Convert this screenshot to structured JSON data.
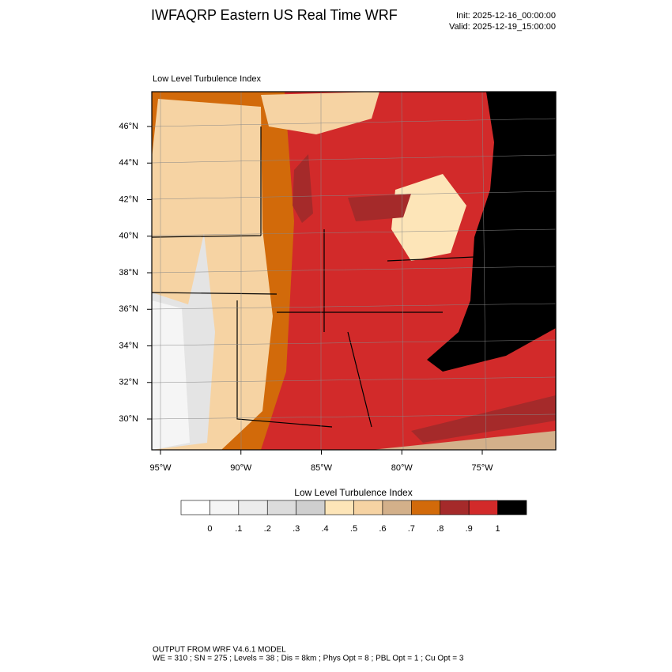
{
  "header": {
    "title": "IWFAQRP Eastern US Real Time WRF",
    "init": "Init: 2025-12-16_00:00:00",
    "valid": "Valid: 2025-12-19_15:00:00"
  },
  "map": {
    "title": "Low Level Turbulence Index",
    "lat_labels": [
      "46°N",
      "44°N",
      "42°N",
      "40°N",
      "38°N",
      "36°N",
      "34°N",
      "32°N",
      "30°N"
    ],
    "lon_labels": [
      "95°W",
      "90°W",
      "85°W",
      "80°W",
      "75°W"
    ]
  },
  "colorbar": {
    "title": "Low Level Turbulence Index",
    "colors": [
      "#ffffff",
      "#f5f5f5",
      "#ececec",
      "#dcdcdc",
      "#cfcfcf",
      "#fde5b8",
      "#f6d3a3",
      "#d3b08a",
      "#d26a0a",
      "#a52a2a",
      "#d22a2a",
      "#000000"
    ],
    "labels": [
      "0",
      ".1",
      ".2",
      ".3",
      ".4",
      ".5",
      ".6",
      ".7",
      ".8",
      ".9",
      "1"
    ]
  },
  "footer": {
    "line1": "OUTPUT FROM WRF V4.6.1 MODEL",
    "line2": "WE = 310 ; SN = 275 ; Levels = 38 ; Dis = 8km ; Phys Opt = 8 ; PBL Opt = 1 ; Cu Opt = 3"
  }
}
